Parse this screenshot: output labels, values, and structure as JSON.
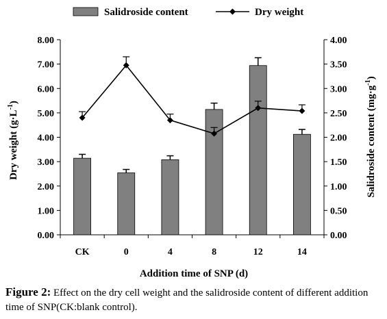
{
  "chart_data": {
    "type": "bar+line",
    "categories": [
      "CK",
      "0",
      "4",
      "8",
      "12",
      "14"
    ],
    "xlabel": "Addition time of SNP (d)",
    "left_axis": {
      "label": "Dry weight (g·L",
      "label_sup": "-1",
      "label_end": ")",
      "range": [
        0,
        8
      ],
      "ticks": [
        "0.00",
        "1.00",
        "2.00",
        "3.00",
        "4.00",
        "5.00",
        "6.00",
        "7.00",
        "8.00"
      ]
    },
    "right_axis": {
      "label": "Salidroside content (mg·g",
      "label_sup": "-1",
      "label_end": ")",
      "range": [
        0,
        4
      ],
      "ticks": [
        "0.00",
        "0.50",
        "1.00",
        "1.50",
        "2.00",
        "2.50",
        "3.00",
        "3.50",
        "4.00"
      ]
    },
    "series": [
      {
        "name": "Salidroside content",
        "kind": "bar",
        "axis": "right",
        "color": "#808080",
        "values": [
          1.57,
          1.27,
          1.54,
          2.57,
          3.47,
          2.06
        ],
        "errors": [
          0.08,
          0.07,
          0.08,
          0.13,
          0.16,
          0.1
        ]
      },
      {
        "name": "Dry weight",
        "kind": "line",
        "axis": "left",
        "color": "#000000",
        "values": [
          4.8,
          6.95,
          4.7,
          4.15,
          5.2,
          5.08
        ],
        "errors": [
          0.25,
          0.35,
          0.25,
          0.25,
          0.28,
          0.25
        ]
      }
    ],
    "grid": false,
    "legend_position": "top"
  },
  "caption": {
    "label": "Figure 2:",
    "text": " Effect on the dry cell weight and the salidroside content of different addition time of SNP(CK:blank control)."
  }
}
